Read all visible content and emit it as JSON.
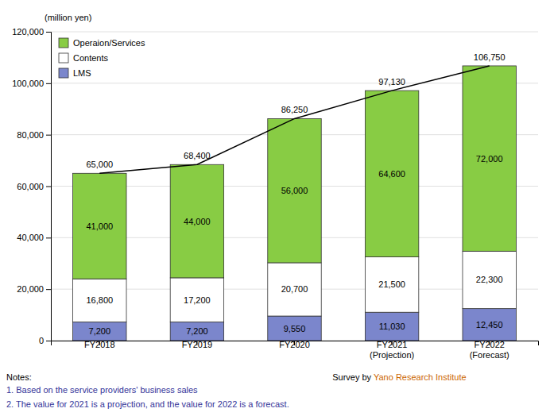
{
  "chart_data": {
    "type": "bar",
    "stacked": true,
    "data_labels": true,
    "grid": true,
    "legend": "upper-left",
    "ylabel": "(million yen)",
    "categories": [
      "FY2018",
      "FY2019",
      "FY2020",
      "FY2021\n(Projection)",
      "FY2022\n(Forecast)"
    ],
    "series": [
      {
        "name": "LMS",
        "color": "#7B86CC",
        "values": [
          7200,
          7200,
          9550,
          11030,
          12450
        ],
        "value_labels": [
          "7,200",
          "7,200",
          "9,550",
          "11,030",
          "12,450"
        ]
      },
      {
        "name": "Contents",
        "color": "#FFFFFF",
        "values": [
          16800,
          17200,
          20700,
          21500,
          22300
        ],
        "value_labels": [
          "16,800",
          "17,200",
          "20,700",
          "21,500",
          "22,300"
        ]
      },
      {
        "name": "Operaion/Services",
        "color": "#88CC44",
        "values": [
          41000,
          44000,
          56000,
          64600,
          72000
        ],
        "value_labels": [
          "41,000",
          "44,000",
          "56,000",
          "64,600",
          "72,000"
        ]
      },
      {
        "type": "line",
        "color": "#000000",
        "values": [
          65000,
          68400,
          86250,
          97130,
          106750
        ],
        "value_labels": [
          "65,000",
          "68,400",
          "86,250",
          "97,130",
          "106,750"
        ]
      }
    ],
    "ylim": [
      0,
      120000
    ],
    "yticks": [
      0,
      {
        "value": 20000,
        "label": "20,000"
      },
      {
        "value": 40000,
        "label": "40,000"
      },
      {
        "value": 60000,
        "label": "60,000"
      },
      {
        "value": 80000,
        "label": "80,000"
      },
      {
        "value": 100000,
        "label": "100,000"
      },
      {
        "value": 120000,
        "label": "120,000"
      }
    ],
    "annotations": [
      {
        "text": "Notes:",
        "color": "#000000"
      },
      {
        "text": "1. Based on the service providers' business sales",
        "color": "#333399"
      },
      {
        "text": "2. The value for 2021 is a projection, and the value for 2022 is a forecast.",
        "color": "#333399"
      },
      {
        "text": "Survey by ",
        "color": "#000000"
      },
      {
        "text": "Yano Research Institute",
        "color": "#CC6600"
      }
    ]
  }
}
